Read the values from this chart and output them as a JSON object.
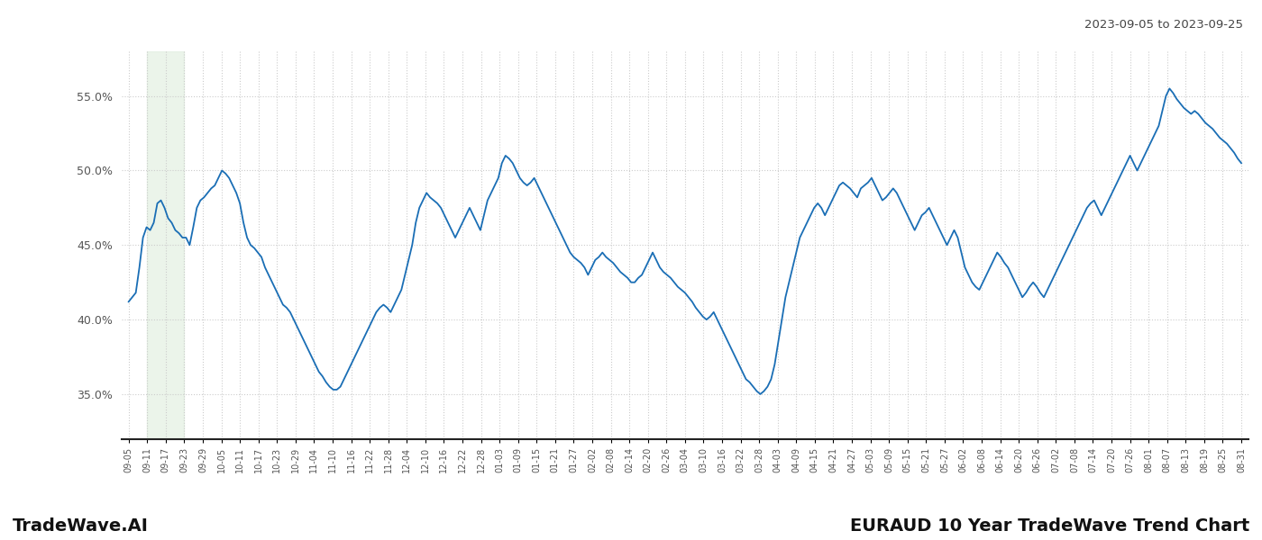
{
  "title_top_right": "2023-09-05 to 2023-09-25",
  "title_bottom_left": "TradeWave.AI",
  "title_bottom_right": "EURAUD 10 Year TradeWave Trend Chart",
  "line_color": "#1a6eb5",
  "line_width": 1.3,
  "background_color": "#ffffff",
  "grid_color": "#cccccc",
  "highlight_color": "#deeedd",
  "highlight_alpha": 0.6,
  "ylim": [
    32.0,
    58.0
  ],
  "yticks": [
    35.0,
    40.0,
    45.0,
    50.0,
    55.0
  ],
  "xtick_labels": [
    "09-05",
    "09-11",
    "09-17",
    "09-23",
    "09-29",
    "10-05",
    "10-11",
    "10-17",
    "10-23",
    "10-29",
    "11-04",
    "11-10",
    "11-16",
    "11-22",
    "11-28",
    "12-04",
    "12-10",
    "12-16",
    "12-22",
    "12-28",
    "01-03",
    "01-09",
    "01-15",
    "01-21",
    "01-27",
    "02-02",
    "02-08",
    "02-14",
    "02-20",
    "02-26",
    "03-04",
    "03-10",
    "03-16",
    "03-22",
    "03-28",
    "04-03",
    "04-09",
    "04-15",
    "04-21",
    "04-27",
    "05-03",
    "05-09",
    "05-15",
    "05-21",
    "05-27",
    "06-02",
    "06-08",
    "06-14",
    "06-20",
    "06-26",
    "07-02",
    "07-08",
    "07-14",
    "07-20",
    "07-26",
    "08-01",
    "08-07",
    "08-13",
    "08-19",
    "08-25",
    "08-31"
  ],
  "highlight_label_start": "09-11",
  "highlight_label_end": "09-23",
  "y_values": [
    41.2,
    41.5,
    41.8,
    43.5,
    45.5,
    46.2,
    46.0,
    46.5,
    47.8,
    48.0,
    47.5,
    46.8,
    46.5,
    46.0,
    45.8,
    45.5,
    45.5,
    45.0,
    46.2,
    47.5,
    48.0,
    48.2,
    48.5,
    48.8,
    49.0,
    49.5,
    50.0,
    49.8,
    49.5,
    49.0,
    48.5,
    47.8,
    46.5,
    45.5,
    45.0,
    44.8,
    44.5,
    44.2,
    43.5,
    43.0,
    42.5,
    42.0,
    41.5,
    41.0,
    40.8,
    40.5,
    40.0,
    39.5,
    39.0,
    38.5,
    38.0,
    37.5,
    37.0,
    36.5,
    36.2,
    35.8,
    35.5,
    35.3,
    35.3,
    35.5,
    36.0,
    36.5,
    37.0,
    37.5,
    38.0,
    38.5,
    39.0,
    39.5,
    40.0,
    40.5,
    40.8,
    41.0,
    40.8,
    40.5,
    41.0,
    41.5,
    42.0,
    43.0,
    44.0,
    45.0,
    46.5,
    47.5,
    48.0,
    48.5,
    48.2,
    48.0,
    47.8,
    47.5,
    47.0,
    46.5,
    46.0,
    45.5,
    46.0,
    46.5,
    47.0,
    47.5,
    47.0,
    46.5,
    46.0,
    47.0,
    48.0,
    48.5,
    49.0,
    49.5,
    50.5,
    51.0,
    50.8,
    50.5,
    50.0,
    49.5,
    49.2,
    49.0,
    49.2,
    49.5,
    49.0,
    48.5,
    48.0,
    47.5,
    47.0,
    46.5,
    46.0,
    45.5,
    45.0,
    44.5,
    44.2,
    44.0,
    43.8,
    43.5,
    43.0,
    43.5,
    44.0,
    44.2,
    44.5,
    44.2,
    44.0,
    43.8,
    43.5,
    43.2,
    43.0,
    42.8,
    42.5,
    42.5,
    42.8,
    43.0,
    43.5,
    44.0,
    44.5,
    44.0,
    43.5,
    43.2,
    43.0,
    42.8,
    42.5,
    42.2,
    42.0,
    41.8,
    41.5,
    41.2,
    40.8,
    40.5,
    40.2,
    40.0,
    40.2,
    40.5,
    40.0,
    39.5,
    39.0,
    38.5,
    38.0,
    37.5,
    37.0,
    36.5,
    36.0,
    35.8,
    35.5,
    35.2,
    35.0,
    35.2,
    35.5,
    36.0,
    37.0,
    38.5,
    40.0,
    41.5,
    42.5,
    43.5,
    44.5,
    45.5,
    46.0,
    46.5,
    47.0,
    47.5,
    47.8,
    47.5,
    47.0,
    47.5,
    48.0,
    48.5,
    49.0,
    49.2,
    49.0,
    48.8,
    48.5,
    48.2,
    48.8,
    49.0,
    49.2,
    49.5,
    49.0,
    48.5,
    48.0,
    48.2,
    48.5,
    48.8,
    48.5,
    48.0,
    47.5,
    47.0,
    46.5,
    46.0,
    46.5,
    47.0,
    47.2,
    47.5,
    47.0,
    46.5,
    46.0,
    45.5,
    45.0,
    45.5,
    46.0,
    45.5,
    44.5,
    43.5,
    43.0,
    42.5,
    42.2,
    42.0,
    42.5,
    43.0,
    43.5,
    44.0,
    44.5,
    44.2,
    43.8,
    43.5,
    43.0,
    42.5,
    42.0,
    41.5,
    41.8,
    42.2,
    42.5,
    42.2,
    41.8,
    41.5,
    42.0,
    42.5,
    43.0,
    43.5,
    44.0,
    44.5,
    45.0,
    45.5,
    46.0,
    46.5,
    47.0,
    47.5,
    47.8,
    48.0,
    47.5,
    47.0,
    47.5,
    48.0,
    48.5,
    49.0,
    49.5,
    50.0,
    50.5,
    51.0,
    50.5,
    50.0,
    50.5,
    51.0,
    51.5,
    52.0,
    52.5,
    53.0,
    54.0,
    55.0,
    55.5,
    55.2,
    54.8,
    54.5,
    54.2,
    54.0,
    53.8,
    54.0,
    53.8,
    53.5,
    53.2,
    53.0,
    52.8,
    52.5,
    52.2,
    52.0,
    51.8,
    51.5,
    51.2,
    50.8,
    50.5
  ]
}
